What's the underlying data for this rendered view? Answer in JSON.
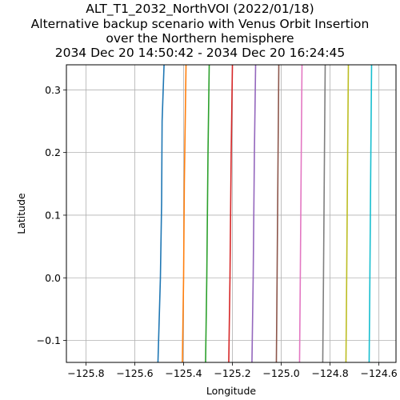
{
  "chart_data": {
    "type": "line",
    "title": [
      "ALT_T1_2032_NorthVOI (2022/01/18)",
      "Alternative backup scenario with Venus Orbit Insertion",
      "over the Northern hemisphere",
      "2034 Dec 20 14:50:42 - 2034 Dec 20 16:24:45"
    ],
    "xlabel": "Longitude",
    "ylabel": "Latitude",
    "xlim": [
      -125.88,
      -124.53
    ],
    "ylim": [
      -0.135,
      0.34
    ],
    "xticks": [
      -125.8,
      -125.6,
      -125.4,
      -125.2,
      -125.0,
      -124.8,
      -124.6
    ],
    "xtick_labels": [
      "−125.8",
      "−125.6",
      "−125.4",
      "−125.2",
      "−125.0",
      "−124.8",
      "−124.6"
    ],
    "yticks": [
      -0.1,
      0.0,
      0.1,
      0.2,
      0.3
    ],
    "ytick_labels": [
      "−0.1",
      "0.0",
      "0.1",
      "0.2",
      "0.3"
    ],
    "grid": true,
    "legend": false,
    "series": [
      {
        "color": "#1f77b4",
        "points": [
          [
            -125.505,
            -0.135
          ],
          [
            -125.495,
            0.0
          ],
          [
            -125.49,
            0.12
          ],
          [
            -125.488,
            0.25
          ],
          [
            -125.48,
            0.34
          ]
        ]
      },
      {
        "color": "#ff7f0e",
        "points": [
          [
            -125.405,
            -0.135
          ],
          [
            -125.4,
            0.0
          ],
          [
            -125.397,
            0.15
          ],
          [
            -125.39,
            0.34
          ]
        ]
      },
      {
        "color": "#2ca02c",
        "points": [
          [
            -125.31,
            -0.135
          ],
          [
            -125.305,
            0.0
          ],
          [
            -125.3,
            0.2
          ],
          [
            -125.295,
            0.34
          ]
        ]
      },
      {
        "color": "#d62728",
        "points": [
          [
            -125.215,
            -0.135
          ],
          [
            -125.21,
            0.0
          ],
          [
            -125.205,
            0.2
          ],
          [
            -125.2,
            0.34
          ]
        ]
      },
      {
        "color": "#9467bd",
        "points": [
          [
            -125.12,
            -0.135
          ],
          [
            -125.115,
            0.0
          ],
          [
            -125.11,
            0.2
          ],
          [
            -125.105,
            0.34
          ]
        ]
      },
      {
        "color": "#8c564b",
        "points": [
          [
            -125.02,
            -0.135
          ],
          [
            -125.017,
            0.0
          ],
          [
            -125.013,
            0.2
          ],
          [
            -125.01,
            0.34
          ]
        ]
      },
      {
        "color": "#e377c2",
        "points": [
          [
            -124.925,
            -0.135
          ],
          [
            -124.922,
            0.0
          ],
          [
            -124.918,
            0.2
          ],
          [
            -124.915,
            0.34
          ]
        ]
      },
      {
        "color": "#7f7f7f",
        "points": [
          [
            -124.83,
            -0.135
          ],
          [
            -124.827,
            0.0
          ],
          [
            -124.823,
            0.2
          ],
          [
            -124.82,
            0.34
          ]
        ]
      },
      {
        "color": "#bcbd22",
        "points": [
          [
            -124.735,
            -0.135
          ],
          [
            -124.732,
            0.0
          ],
          [
            -124.728,
            0.2
          ],
          [
            -124.725,
            0.34
          ]
        ]
      },
      {
        "color": "#17becf",
        "points": [
          [
            -124.64,
            -0.135
          ],
          [
            -124.637,
            0.0
          ],
          [
            -124.633,
            0.2
          ],
          [
            -124.63,
            0.34
          ]
        ]
      }
    ]
  }
}
